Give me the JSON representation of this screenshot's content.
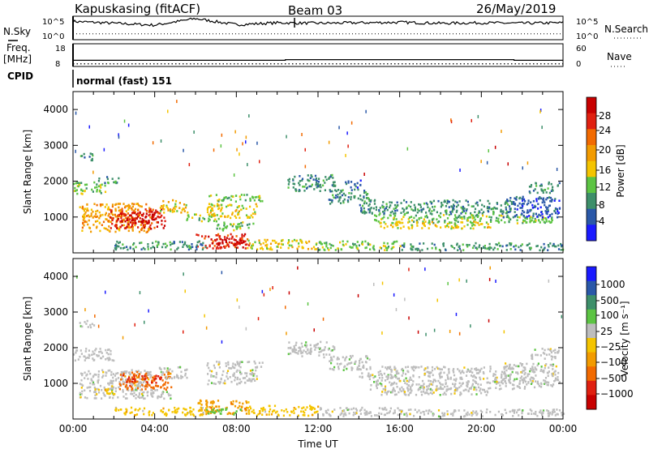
{
  "header": {
    "title": "Kapuskasing (fitACF)",
    "beam": "Beam 03",
    "date": "26/May/2019"
  },
  "colors": {
    "power": [
      "#1a1aff",
      "#2a58a8",
      "#3d8f6a",
      "#5cc443",
      "#f4c400",
      "#f29b00",
      "#f26a00",
      "#e02010",
      "#c80000"
    ],
    "velocity": [
      "#1a1aff",
      "#2a58a8",
      "#3d8f6a",
      "#5cc443",
      "#bdbdbd",
      "#f4c400",
      "#f29b00",
      "#f26a00",
      "#e02010",
      "#c80000"
    ]
  },
  "chart_data": [
    {
      "type": "line",
      "name": "noise-panel",
      "left_labels": [
        "N.Sky"
      ],
      "left_ticks": [
        "10^5",
        "10^0"
      ],
      "right_labels": [
        "N.Search"
      ],
      "right_ticks": [
        "10^5",
        "10^0"
      ],
      "series": [
        {
          "name": "N.Sky",
          "x": [
            0,
            2,
            4,
            6,
            8,
            10,
            12,
            14,
            16,
            18,
            20,
            22,
            24
          ],
          "y_fraction": [
            0.78,
            0.7,
            0.62,
            0.9,
            0.64,
            0.72,
            0.7,
            0.72,
            0.74,
            0.7,
            0.72,
            0.7,
            0.72
          ]
        },
        {
          "name": "N.Search",
          "x": [
            0,
            24
          ],
          "y_fraction": [
            0.25,
            0.25
          ]
        }
      ]
    },
    {
      "type": "line",
      "name": "frequency-panel",
      "left_labels": [
        "Freq.",
        "[MHz]",
        "CPID"
      ],
      "left_ticks": [
        "18",
        "8"
      ],
      "right_labels": [
        "Nave"
      ],
      "right_ticks": [
        "60",
        "0"
      ],
      "series": [
        {
          "name": "Freq.",
          "x": [
            0,
            10.4,
            10.4,
            21.6,
            21.6,
            24
          ],
          "y": [
            10.7,
            10.7,
            11.0,
            11.0,
            10.7,
            10.7
          ]
        },
        {
          "name": "Nave",
          "x": [
            0,
            24
          ],
          "y": [
            7,
            7
          ]
        }
      ],
      "cpid_label": "normal (fast) 151"
    },
    {
      "type": "heatmap",
      "name": "power-panel",
      "ylabel": "Slant Range [km]",
      "colorbar_label": "Power [dB]",
      "xlim": [
        0,
        24
      ],
      "ylim": [
        0,
        4500
      ],
      "yticks": [
        "4000",
        "3000",
        "2000",
        "1000"
      ],
      "colorbar_ticks": [
        "28",
        "24",
        "20",
        "16",
        "12",
        "8",
        "4"
      ],
      "regions": [
        {
          "x": [
            0.0,
            1.6
          ],
          "y": [
            1650,
            2000
          ],
          "level": 3
        },
        {
          "x": [
            1.2,
            2.2
          ],
          "y": [
            1950,
            2150
          ],
          "level": 2
        },
        {
          "x": [
            0.3,
            3.8
          ],
          "y": [
            600,
            1400
          ],
          "level": 5
        },
        {
          "x": [
            1.8,
            4.5
          ],
          "y": [
            700,
            1250
          ],
          "level": 7
        },
        {
          "x": [
            2.5,
            4.2
          ],
          "y": [
            850,
            1150
          ],
          "level": 8
        },
        {
          "x": [
            4.2,
            5.6
          ],
          "y": [
            1150,
            1500
          ],
          "level": 4
        },
        {
          "x": [
            5.5,
            7.2
          ],
          "y": [
            900,
            1100
          ],
          "level": 3
        },
        {
          "x": [
            6.5,
            9.3
          ],
          "y": [
            1450,
            1650
          ],
          "level": 3
        },
        {
          "x": [
            6.5,
            9.0
          ],
          "y": [
            1000,
            1400
          ],
          "level": 4
        },
        {
          "x": [
            7.0,
            8.8
          ],
          "y": [
            650,
            900
          ],
          "level": 3
        },
        {
          "x": [
            6.0,
            8.6
          ],
          "y": [
            150,
            550
          ],
          "level": 7
        },
        {
          "x": [
            7.0,
            8.4
          ],
          "y": [
            200,
            420
          ],
          "level": 8
        },
        {
          "x": [
            2.0,
            6.5
          ],
          "y": [
            120,
            350
          ],
          "level": 2
        },
        {
          "x": [
            8.5,
            12.0
          ],
          "y": [
            120,
            400
          ],
          "level": 4
        },
        {
          "x": [
            12.0,
            16.0
          ],
          "y": [
            100,
            350
          ],
          "level": 3
        },
        {
          "x": [
            16.0,
            24.0
          ],
          "y": [
            100,
            300
          ],
          "level": 2
        },
        {
          "x": [
            10.5,
            12.8
          ],
          "y": [
            1750,
            2200
          ],
          "level": 2
        },
        {
          "x": [
            12.5,
            14.5
          ],
          "y": [
            1400,
            1800
          ],
          "level": 2
        },
        {
          "x": [
            14.0,
            21.5
          ],
          "y": [
            1100,
            1500
          ],
          "level": 2
        },
        {
          "x": [
            14.5,
            23.5
          ],
          "y": [
            850,
            1100
          ],
          "level": 3
        },
        {
          "x": [
            15.0,
            20.5
          ],
          "y": [
            700,
            900
          ],
          "level": 4
        },
        {
          "x": [
            21.0,
            23.8
          ],
          "y": [
            1000,
            1600
          ],
          "level": 1
        },
        {
          "x": [
            22.3,
            23.8
          ],
          "y": [
            1700,
            2000
          ],
          "level": 2
        },
        {
          "x": [
            0.3,
            1.0
          ],
          "y": [
            2600,
            2800
          ],
          "level": 2
        },
        {
          "x": [
            13.3,
            14.2
          ],
          "y": [
            1850,
            2050
          ],
          "level": 1
        }
      ]
    },
    {
      "type": "heatmap",
      "name": "velocity-panel",
      "ylabel": "Slant Range [km]",
      "xlabel": "Time UT",
      "colorbar_label": "Velocity [m s⁻¹]",
      "xlim": [
        0,
        24
      ],
      "ylim": [
        0,
        4500
      ],
      "yticks": [
        "4000",
        "3000",
        "2000",
        "1000"
      ],
      "xticks": [
        "00:00",
        "04:00",
        "08:00",
        "12:00",
        "16:00",
        "20:00",
        "00:00"
      ],
      "colorbar_ticks": [
        "1000",
        "500",
        "100",
        "25",
        "−25",
        "−100",
        "−500",
        "−1000"
      ],
      "regions": [
        {
          "x": [
            0.0,
            2.0
          ],
          "y": [
            1650,
            2000
          ],
          "level": 4
        },
        {
          "x": [
            0.3,
            3.8
          ],
          "y": [
            600,
            1400
          ],
          "level": 4
        },
        {
          "x": [
            2.2,
            4.8
          ],
          "y": [
            850,
            1350
          ],
          "level": 7
        },
        {
          "x": [
            2.5,
            4.3
          ],
          "y": [
            1050,
            1250
          ],
          "level": 8
        },
        {
          "x": [
            1.0,
            2.0
          ],
          "y": [
            700,
            900
          ],
          "level": 5
        },
        {
          "x": [
            3.0,
            4.8
          ],
          "y": [
            600,
            850
          ],
          "level": 4
        },
        {
          "x": [
            4.2,
            5.6
          ],
          "y": [
            1150,
            1500
          ],
          "level": 4
        },
        {
          "x": [
            6.5,
            9.3
          ],
          "y": [
            1450,
            1650
          ],
          "level": 4
        },
        {
          "x": [
            6.5,
            9.0
          ],
          "y": [
            1000,
            1400
          ],
          "level": 4
        },
        {
          "x": [
            6.0,
            8.6
          ],
          "y": [
            150,
            550
          ],
          "level": 6
        },
        {
          "x": [
            6.5,
            8.2
          ],
          "y": [
            150,
            320
          ],
          "level": 3
        },
        {
          "x": [
            2.0,
            6.5
          ],
          "y": [
            120,
            350
          ],
          "level": 5
        },
        {
          "x": [
            8.5,
            12.0
          ],
          "y": [
            120,
            400
          ],
          "level": 5
        },
        {
          "x": [
            12.0,
            16.0
          ],
          "y": [
            100,
            350
          ],
          "level": 4
        },
        {
          "x": [
            16.0,
            24.0
          ],
          "y": [
            100,
            300
          ],
          "level": 4
        },
        {
          "x": [
            10.5,
            12.8
          ],
          "y": [
            1750,
            2200
          ],
          "level": 4
        },
        {
          "x": [
            12.5,
            14.5
          ],
          "y": [
            1400,
            1800
          ],
          "level": 4
        },
        {
          "x": [
            14.0,
            21.5
          ],
          "y": [
            1100,
            1500
          ],
          "level": 4
        },
        {
          "x": [
            14.5,
            23.5
          ],
          "y": [
            850,
            1100
          ],
          "level": 4
        },
        {
          "x": [
            15.0,
            20.5
          ],
          "y": [
            700,
            900
          ],
          "level": 4
        },
        {
          "x": [
            21.0,
            23.8
          ],
          "y": [
            1000,
            1600
          ],
          "level": 4
        },
        {
          "x": [
            22.3,
            23.8
          ],
          "y": [
            1700,
            2000
          ],
          "level": 4
        },
        {
          "x": [
            0.3,
            1.0
          ],
          "y": [
            2600,
            2800
          ],
          "level": 4
        }
      ]
    }
  ]
}
